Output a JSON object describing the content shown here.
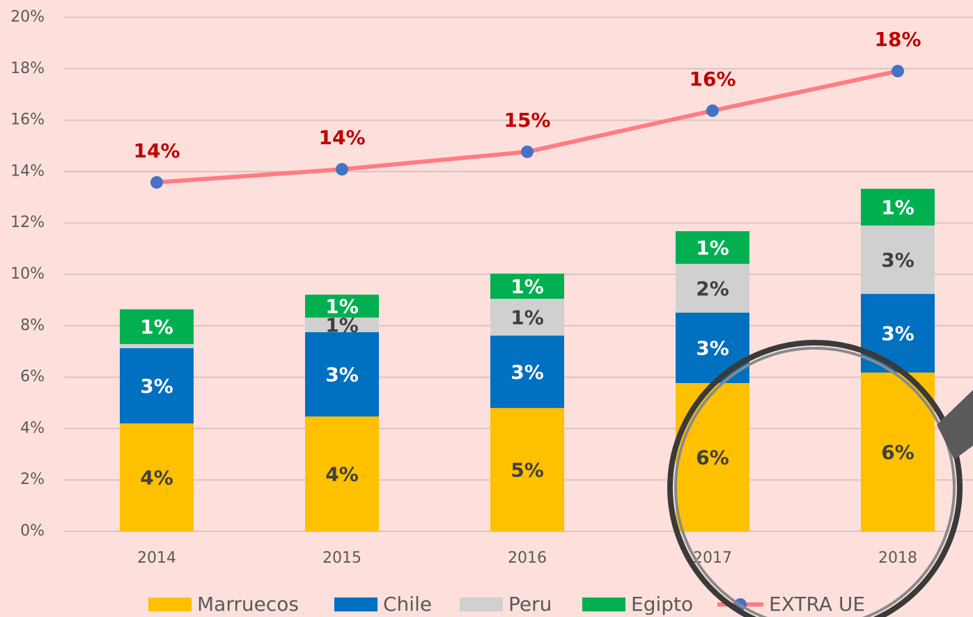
{
  "chart_data": {
    "type": "bar",
    "stacked": true,
    "categories": [
      "2014",
      "2015",
      "2016",
      "2017",
      "2018"
    ],
    "series": [
      {
        "name": "Marruecos",
        "color": "#ffc000",
        "values": [
          4.2,
          4.47,
          4.8,
          5.77,
          6.18
        ],
        "value_labels": [
          "4%",
          "4%",
          "5%",
          "6%",
          "6%"
        ],
        "label_color": "#404040"
      },
      {
        "name": "Chile",
        "color": "#0070c0",
        "values": [
          2.93,
          3.28,
          2.82,
          2.74,
          3.06
        ],
        "value_labels": [
          "3%",
          "3%",
          "3%",
          "3%",
          "3%"
        ],
        "label_color": "#ffffff"
      },
      {
        "name": "Peru",
        "color": "#d0d0d0",
        "values": [
          0.16,
          0.57,
          1.43,
          1.9,
          2.66
        ],
        "value_labels": [
          null,
          "1%",
          "1%",
          "2%",
          "3%"
        ],
        "label_color": "#404040"
      },
      {
        "name": "Egipto",
        "color": "#00b050",
        "values": [
          1.35,
          0.89,
          0.98,
          1.27,
          1.43
        ],
        "value_labels": [
          "1%",
          "1%",
          "1%",
          "1%",
          "1%"
        ],
        "label_color": "#ffffff"
      },
      {
        "name": "EXTRA UE",
        "type": "line",
        "color": "#ff7c80",
        "marker_color": "#4472c4",
        "values": [
          13.58,
          14.09,
          14.77,
          16.37,
          17.91
        ],
        "value_labels": [
          "14%",
          "14%",
          "15%",
          "16%",
          "18%"
        ],
        "label_color": "#c00000"
      }
    ],
    "ylim": [
      0,
      20
    ],
    "yticks": [
      {
        "value": 0,
        "label": "0%"
      },
      {
        "value": 2,
        "label": "2%"
      },
      {
        "value": 4,
        "label": "4%"
      },
      {
        "value": 6,
        "label": "6%"
      },
      {
        "value": 8,
        "label": "8%"
      },
      {
        "value": 10,
        "label": "10%"
      },
      {
        "value": 12,
        "label": "12%"
      },
      {
        "value": 14,
        "label": "14%"
      },
      {
        "value": 16,
        "label": "16%"
      },
      {
        "value": 18,
        "label": "18%"
      },
      {
        "value": 20,
        "label": "20%"
      }
    ],
    "grid": true,
    "legend": "bottom"
  }
}
